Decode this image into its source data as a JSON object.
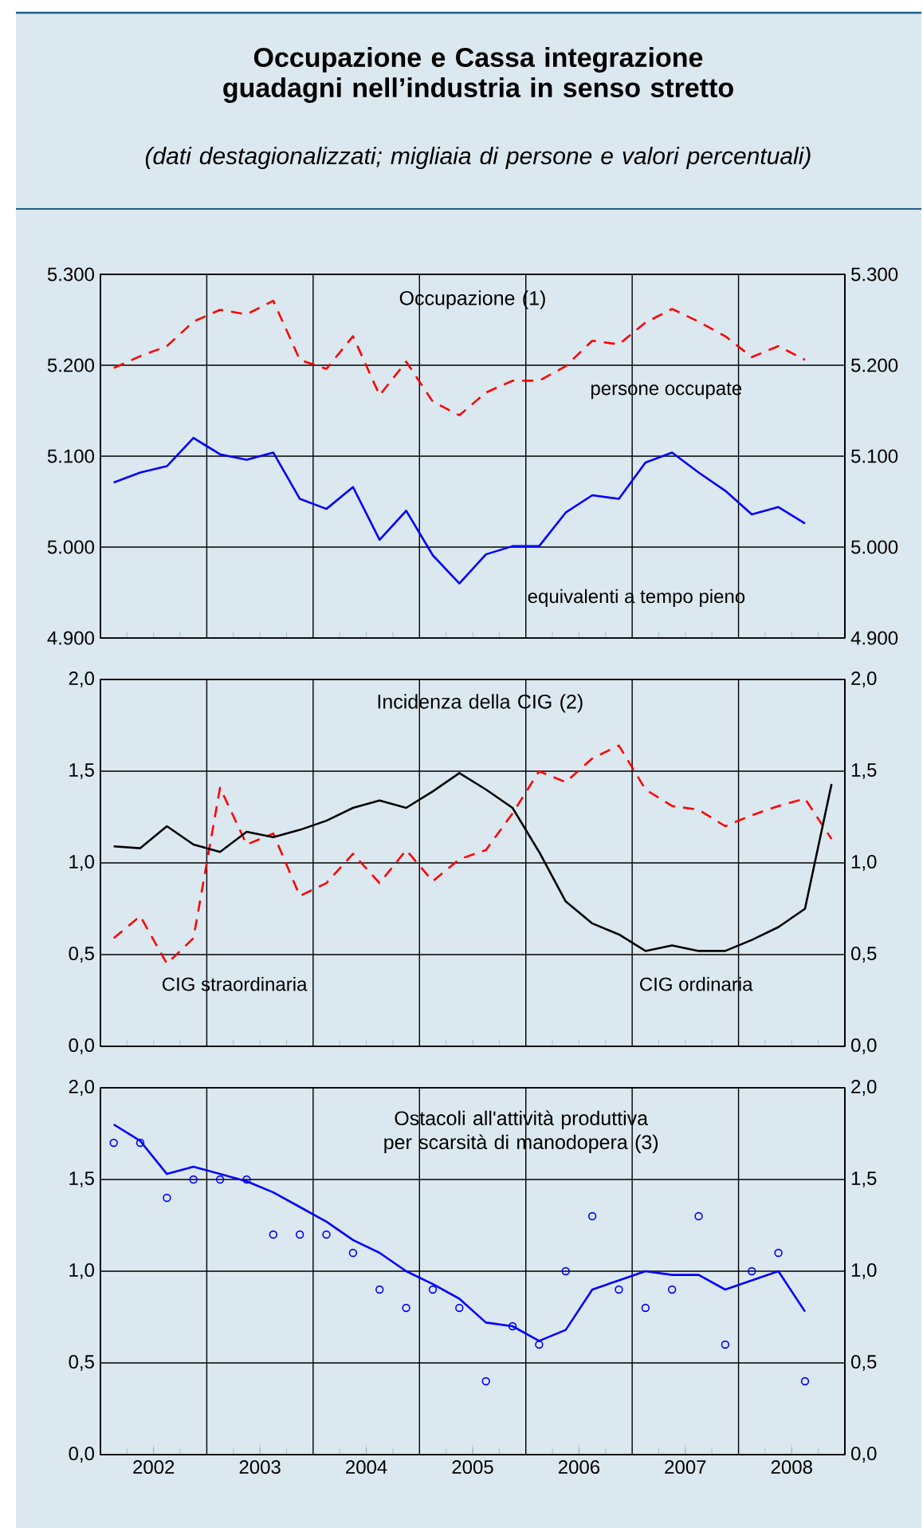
{
  "chart_data": [
    {
      "type": "line",
      "title": "Occupazione e Cassa integrazione guadagni nell’industria in senso stretto",
      "subtitle": "(dati destagionalizzati; migliaia di persone e valori percentuali)",
      "annotations": [
        "Occupazione (1)"
      ],
      "xlim": [
        2002,
        2009
      ],
      "xticks": [
        {
          "value": 2002,
          "label": null
        },
        {
          "value": 2003,
          "label": null
        },
        {
          "value": 2004,
          "label": null
        },
        {
          "value": 2005,
          "label": null
        },
        {
          "value": 2006,
          "label": null
        },
        {
          "value": 2007,
          "label": null
        },
        {
          "value": 2008,
          "label": null
        },
        {
          "value": 2009,
          "label": null
        }
      ],
      "ylim": [
        4900,
        5300
      ],
      "yticks": [
        {
          "value": 4900,
          "label": "4.900"
        },
        {
          "value": 5000,
          "label": "5.000"
        },
        {
          "value": 5100,
          "label": "5.100"
        },
        {
          "value": 5200,
          "label": "5.200"
        },
        {
          "value": 5300,
          "label": "5.300"
        }
      ],
      "y2lim": [
        4900,
        5300
      ],
      "y2ticks": [
        {
          "value": 4900,
          "label": "4.900"
        },
        {
          "value": 5000,
          "label": "5.000"
        },
        {
          "value": 5100,
          "label": "5.100"
        },
        {
          "value": 5200,
          "label": "5.200"
        },
        {
          "value": 5300,
          "label": "5.300"
        }
      ],
      "tick_labels": "y",
      "grid": true,
      "marker": "none",
      "series": [
        {
          "name": "persone occupate",
          "color": "#ff0000",
          "line_style": "dashed",
          "x": [
            2002.125,
            2002.375,
            2002.625,
            2002.875,
            2003.125,
            2003.375,
            2003.625,
            2003.875,
            2004.125,
            2004.375,
            2004.625,
            2004.875,
            2005.125,
            2005.375,
            2005.625,
            2005.875,
            2006.125,
            2006.375,
            2006.625,
            2006.875,
            2007.125,
            2007.375,
            2007.625,
            2007.875,
            2008.125,
            2008.375,
            2008.625
          ],
          "values": [
            5197,
            5210,
            5221,
            5248,
            5261,
            5256,
            5271,
            5206,
            5196,
            5232,
            5167,
            5204,
            5160,
            5145,
            5170,
            5183,
            5183,
            5199,
            5227,
            5223,
            5247,
            5262,
            5248,
            5232,
            5209,
            5221,
            5206
          ]
        },
        {
          "name": "equivalenti a tempo pieno",
          "color": "#0000ff",
          "line_style": "solid",
          "x": [
            2002.125,
            2002.375,
            2002.625,
            2002.875,
            2003.125,
            2003.375,
            2003.625,
            2003.875,
            2004.125,
            2004.375,
            2004.625,
            2004.875,
            2005.125,
            2005.375,
            2005.625,
            2005.875,
            2006.125,
            2006.375,
            2006.625,
            2006.875,
            2007.125,
            2007.375,
            2007.625,
            2007.875,
            2008.125,
            2008.375,
            2008.625
          ],
          "values": [
            5071,
            5082,
            5089,
            5120,
            5102,
            5096,
            5104,
            5053,
            5042,
            5066,
            5008,
            5040,
            4991,
            4960,
            4992,
            5001,
            5001,
            5038,
            5057,
            5053,
            5093,
            5104,
            5082,
            5062,
            5036,
            5044,
            5026
          ]
        }
      ]
    },
    {
      "type": "line",
      "annotations": [
        "Incidenza della CIG (2)"
      ],
      "xlim": [
        2002,
        2009
      ],
      "xticks": [
        {
          "value": 2002,
          "label": null
        },
        {
          "value": 2003,
          "label": null
        },
        {
          "value": 2004,
          "label": null
        },
        {
          "value": 2005,
          "label": null
        },
        {
          "value": 2006,
          "label": null
        },
        {
          "value": 2007,
          "label": null
        },
        {
          "value": 2008,
          "label": null
        },
        {
          "value": 2009,
          "label": null
        }
      ],
      "ylim": [
        0,
        2
      ],
      "yticks": [
        {
          "value": 0,
          "label": "0,0"
        },
        {
          "value": 0.5,
          "label": "0,5"
        },
        {
          "value": 1,
          "label": "1,0"
        },
        {
          "value": 1.5,
          "label": "1,5"
        },
        {
          "value": 2,
          "label": "2,0"
        }
      ],
      "y2lim": [
        0,
        2
      ],
      "y2ticks": [
        {
          "value": 0,
          "label": "0,0"
        },
        {
          "value": 0.5,
          "label": "0,5"
        },
        {
          "value": 1,
          "label": "1,0"
        },
        {
          "value": 1.5,
          "label": "1,5"
        },
        {
          "value": 2,
          "label": "2,0"
        }
      ],
      "tick_labels": "y",
      "grid": true,
      "marker": "none",
      "series": [
        {
          "name": "CIG straordinaria",
          "color": "#ff0000",
          "line_style": "dashed",
          "x": [
            2002.125,
            2002.375,
            2002.625,
            2002.875,
            2003.125,
            2003.375,
            2003.625,
            2003.875,
            2004.125,
            2004.375,
            2004.625,
            2004.875,
            2005.125,
            2005.375,
            2005.625,
            2005.875,
            2006.125,
            2006.375,
            2006.625,
            2006.875,
            2007.125,
            2007.375,
            2007.625,
            2007.875,
            2008.125,
            2008.375,
            2008.625,
            2008.875
          ],
          "values": [
            0.59,
            0.71,
            0.45,
            0.59,
            1.41,
            1.1,
            1.16,
            0.82,
            0.89,
            1.05,
            0.89,
            1.07,
            0.9,
            1.02,
            1.07,
            1.27,
            1.5,
            1.44,
            1.57,
            1.64,
            1.4,
            1.31,
            1.29,
            1.2,
            1.26,
            1.31,
            1.35,
            1.13
          ]
        },
        {
          "name": "CIG ordinaria",
          "color": "#000000",
          "line_style": "solid",
          "x": [
            2002.125,
            2002.375,
            2002.625,
            2002.875,
            2003.125,
            2003.375,
            2003.625,
            2003.875,
            2004.125,
            2004.375,
            2004.625,
            2004.875,
            2005.125,
            2005.375,
            2005.625,
            2005.875,
            2006.125,
            2006.375,
            2006.625,
            2006.875,
            2007.125,
            2007.375,
            2007.625,
            2007.875,
            2008.125,
            2008.375,
            2008.625,
            2008.875
          ],
          "values": [
            1.09,
            1.08,
            1.2,
            1.1,
            1.06,
            1.17,
            1.14,
            1.18,
            1.23,
            1.3,
            1.34,
            1.3,
            1.39,
            1.49,
            1.4,
            1.3,
            1.06,
            0.79,
            0.67,
            0.61,
            0.52,
            0.55,
            0.52,
            0.52,
            0.58,
            0.65,
            0.75,
            1.43
          ]
        }
      ]
    },
    {
      "type": "line",
      "annotations": [
        "Ostacoli all'attività produttiva per scarsità di manodopera (3)"
      ],
      "xlim": [
        2002,
        2009
      ],
      "xticks": [
        {
          "value": 2002,
          "label": null
        },
        {
          "value": 2003,
          "label": null
        },
        {
          "value": 2004,
          "label": null
        },
        {
          "value": 2005,
          "label": null
        },
        {
          "value": 2006,
          "label": null
        },
        {
          "value": 2007,
          "label": null
        },
        {
          "value": 2008,
          "label": null
        },
        {
          "value": 2009,
          "label": null
        },
        {
          "value": 2002.5,
          "label": "2002"
        },
        {
          "value": 2003.5,
          "label": "2003"
        },
        {
          "value": 2004.5,
          "label": "2004"
        },
        {
          "value": 2005.5,
          "label": "2005"
        },
        {
          "value": 2006.5,
          "label": "2006"
        },
        {
          "value": 2007.5,
          "label": "2007"
        },
        {
          "value": 2008.5,
          "label": "2008"
        }
      ],
      "ylim": [
        0,
        2
      ],
      "yticks": [
        {
          "value": 0,
          "label": "0,0"
        },
        {
          "value": 0.5,
          "label": "0,5"
        },
        {
          "value": 1,
          "label": "1,0"
        },
        {
          "value": 1.5,
          "label": "1,5"
        },
        {
          "value": 2,
          "label": "2,0"
        }
      ],
      "y2lim": [
        0,
        2
      ],
      "y2ticks": [
        {
          "value": 0,
          "label": "0,0"
        },
        {
          "value": 0.5,
          "label": "0,5"
        },
        {
          "value": 1,
          "label": "1,0"
        },
        {
          "value": 1.5,
          "label": "1,5"
        },
        {
          "value": 2,
          "label": "2,0"
        }
      ],
      "grid": true,
      "marker": "none",
      "series": [
        {
          "type": "line",
          "color": "#0000ff",
          "line_style": "solid",
          "x": [
            2002.125,
            2002.375,
            2002.625,
            2002.875,
            2003.125,
            2003.375,
            2003.625,
            2003.875,
            2004.125,
            2004.375,
            2004.625,
            2004.875,
            2005.125,
            2005.375,
            2005.625,
            2005.875,
            2006.125,
            2006.375,
            2006.625,
            2006.875,
            2007.125,
            2007.375,
            2007.625,
            2007.875,
            2008.125,
            2008.375,
            2008.625
          ],
          "values": [
            1.8,
            1.71,
            1.53,
            1.57,
            1.53,
            1.49,
            1.43,
            1.35,
            1.27,
            1.17,
            1.1,
            1.0,
            0.93,
            0.85,
            0.72,
            0.7,
            0.62,
            0.68,
            0.9,
            0.95,
            1.0,
            0.98,
            0.98,
            0.9,
            0.95,
            1.0,
            0.78
          ]
        },
        {
          "type": "scatter",
          "color": "#0000ff",
          "marker": "circle",
          "x": [
            2002.125,
            2002.375,
            2002.625,
            2002.875,
            2003.125,
            2003.375,
            2003.625,
            2003.875,
            2004.125,
            2004.375,
            2004.625,
            2004.875,
            2005.125,
            2005.375,
            2005.625,
            2005.875,
            2006.125,
            2006.375,
            2006.625,
            2006.875,
            2007.125,
            2007.375,
            2007.625,
            2007.875,
            2008.125,
            2008.375,
            2008.625
          ],
          "values": [
            1.7,
            1.7,
            1.4,
            1.5,
            1.5,
            1.5,
            1.2,
            1.2,
            1.2,
            1.1,
            0.9,
            0.8,
            0.9,
            0.8,
            0.4,
            0.7,
            0.6,
            1.0,
            1.3,
            0.9,
            0.8,
            0.9,
            1.3,
            0.6,
            1.0,
            1.1,
            0.4
          ]
        }
      ]
    }
  ]
}
